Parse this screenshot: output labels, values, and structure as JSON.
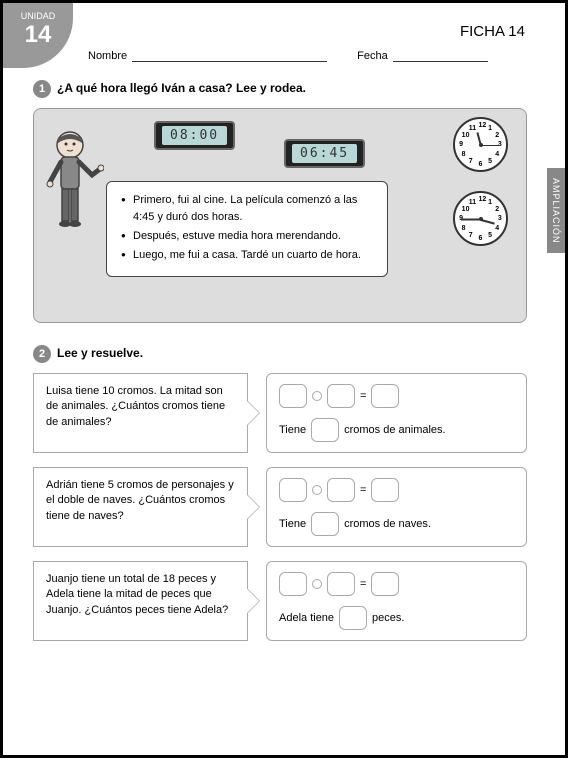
{
  "unit": {
    "label": "UNIDAD",
    "number": "14"
  },
  "ficha": "FICHA 14",
  "fields": {
    "name_label": "Nombre",
    "date_label": "Fecha"
  },
  "side_tab": "AMPLIACIÓN",
  "q1": {
    "num": "1",
    "title": "¿A qué hora llegó Iván a casa? Lee y rodea.",
    "digital1": "08:00",
    "digital2": "06:45",
    "clock_numbers": [
      "12",
      "1",
      "2",
      "3",
      "4",
      "5",
      "6",
      "7",
      "8",
      "9",
      "10",
      "11"
    ],
    "clock1": {
      "hour_angle": -15,
      "min_angle": 90
    },
    "clock2": {
      "hour_angle": 105,
      "min_angle": -90
    },
    "bullets": [
      "Primero, fui al cine. La película comenzó a las 4:45 y duró dos horas.",
      "Después, estuve media hora merendando.",
      "Luego, me fui a casa. Tardé un cuarto de hora."
    ]
  },
  "q2": {
    "num": "2",
    "title": "Lee y resuelve.",
    "problems": [
      {
        "text": "Luisa tiene 10 cromos. La mitad son de animales. ¿Cuántos cromos tiene de animales?",
        "answer_pre": "Tiene",
        "answer_post": "cromos de animales."
      },
      {
        "text": "Adrián tiene 5 cromos de personajes y el doble de naves. ¿Cuántos cromos tiene de naves?",
        "answer_pre": "Tiene",
        "answer_post": "cromos de naves."
      },
      {
        "text": "Juanjo tiene un total de 18 peces y Adela tiene la mitad de peces que Juanjo. ¿Cuántos peces tiene Adela?",
        "answer_pre": "Adela tiene",
        "answer_post": "peces."
      }
    ]
  },
  "colors": {
    "badge": "#999999",
    "tab": "#888888",
    "border": "#aaaaaa",
    "q1bg": "#dddddd"
  }
}
